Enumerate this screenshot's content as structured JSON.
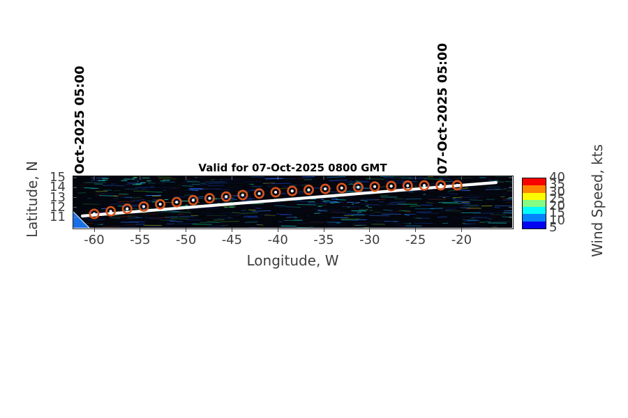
{
  "page": {
    "background": "#ffffff"
  },
  "chart_data": {
    "type": "scatter",
    "title": "Valid for 07-Oct-2025 0800 GMT",
    "xlabel": "Longitude, W",
    "ylabel": "Latitude, N",
    "xlim": [
      -62.3,
      -14.5
    ],
    "ylim": [
      9.9,
      15.1
    ],
    "xticks": [
      -60,
      -55,
      -50,
      -45,
      -40,
      -35,
      -30,
      -25,
      -20
    ],
    "yticks": [
      11,
      12,
      13,
      14,
      15
    ],
    "grid": false,
    "annotations": {
      "track_start_label": "Oct-2025 05:00",
      "track_end_label": "07-Oct-2025 05:00"
    },
    "series": [
      {
        "name": "storm-track-positions",
        "marker": "ring-with-white-dot",
        "ring_color": "#d9541c",
        "dot_color": "#ffffff",
        "points": [
          [
            -60.0,
            11.35
          ],
          [
            -58.2,
            11.61
          ],
          [
            -56.41,
            11.86
          ],
          [
            -54.61,
            12.09
          ],
          [
            -52.81,
            12.32
          ],
          [
            -51.02,
            12.53
          ],
          [
            -49.22,
            12.73
          ],
          [
            -47.43,
            12.92
          ],
          [
            -45.63,
            13.09
          ],
          [
            -43.83,
            13.25
          ],
          [
            -42.03,
            13.4
          ],
          [
            -40.24,
            13.53
          ],
          [
            -38.44,
            13.66
          ],
          [
            -36.64,
            13.77
          ],
          [
            -34.84,
            13.87
          ],
          [
            -33.05,
            13.96
          ],
          [
            -31.25,
            14.04
          ],
          [
            -29.45,
            14.1
          ],
          [
            -27.65,
            14.15
          ],
          [
            -25.86,
            14.19
          ],
          [
            -24.06,
            14.21
          ],
          [
            -22.26,
            14.23
          ],
          [
            -20.47,
            14.23
          ]
        ]
      },
      {
        "name": "straight-track-line",
        "type": "line",
        "color": "#ffffff",
        "from": [
          -61.29,
          11.14
        ],
        "to": [
          -16.23,
          14.51
        ]
      }
    ],
    "colorbar": {
      "label": "Wind Speed, kts",
      "ticks": [
        5,
        10,
        15,
        20,
        25,
        30,
        35,
        40
      ],
      "bands": [
        {
          "range": [
            35,
            40
          ],
          "color": "#f80400"
        },
        {
          "range": [
            30,
            35
          ],
          "color": "#ff8400"
        },
        {
          "range": [
            25,
            30
          ],
          "color": "#fcfc00"
        },
        {
          "range": [
            20,
            25
          ],
          "color": "#84fc84"
        },
        {
          "range": [
            15,
            20
          ],
          "color": "#00fcfc"
        },
        {
          "range": [
            10,
            15
          ],
          "color": "#0484fc"
        },
        {
          "range": [
            5,
            10
          ],
          "color": "#0404f0"
        }
      ]
    },
    "background_layer": "dark ocean wind-field imagery with blue/cyan/green streaks, blue land wedge at lower-left"
  },
  "style": {
    "tick_color": "#3d3d3d",
    "title_color": "#000000",
    "date_label_color": "#000000",
    "marker_ring_color": "#d9541c",
    "marker_dot_color": "#ffffff",
    "track_line_color": "#ffffff",
    "map_background": "#04060e",
    "land_color": "#1b6fe4"
  }
}
